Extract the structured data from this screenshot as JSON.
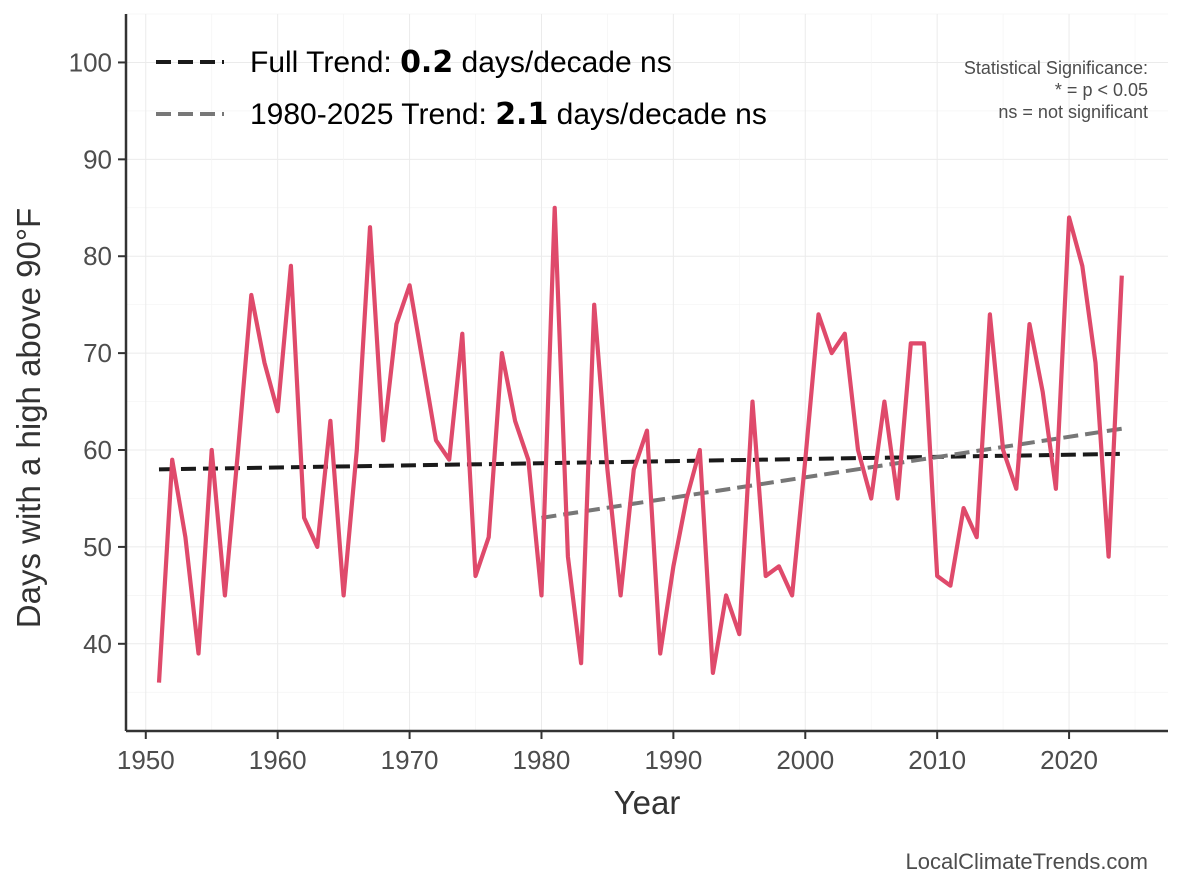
{
  "chart_data": {
    "type": "line",
    "title": "",
    "xlabel": "Year",
    "ylabel": "Days with a high above 90°F",
    "xlim": [
      1948.5,
      2027.5
    ],
    "ylim": [
      31,
      105
    ],
    "x_ticks": [
      1950,
      1960,
      1970,
      1980,
      1990,
      2000,
      2010,
      2020
    ],
    "y_ticks": [
      40,
      50,
      60,
      70,
      80,
      90,
      100
    ],
    "grid": true,
    "series": [
      {
        "color": "#df4a6b",
        "x": [
          1951,
          1952,
          1953,
          1954,
          1955,
          1956,
          1957,
          1958,
          1959,
          1960,
          1961,
          1962,
          1963,
          1964,
          1965,
          1966,
          1967,
          1968,
          1969,
          1970,
          1971,
          1972,
          1973,
          1974,
          1975,
          1976,
          1977,
          1978,
          1979,
          1980,
          1981,
          1982,
          1983,
          1984,
          1985,
          1986,
          1987,
          1988,
          1989,
          1990,
          1991,
          1992,
          1993,
          1994,
          1995,
          1996,
          1997,
          1998,
          1999,
          2000,
          2001,
          2002,
          2003,
          2004,
          2005,
          2006,
          2007,
          2008,
          2009,
          2010,
          2011,
          2012,
          2013,
          2014,
          2015,
          2016,
          2017,
          2018,
          2019,
          2020,
          2021,
          2022,
          2023,
          2024
        ],
        "values": [
          36,
          59,
          51,
          39,
          60,
          45,
          60,
          76,
          69,
          64,
          79,
          53,
          50,
          63,
          45,
          60,
          83,
          61,
          73,
          77,
          69,
          61,
          59,
          72,
          47,
          51,
          70,
          63,
          59,
          45,
          85,
          49,
          38,
          75,
          58,
          45,
          58,
          62,
          39,
          48,
          55,
          60,
          37,
          45,
          41,
          65,
          47,
          48,
          45,
          59,
          74,
          70,
          72,
          60,
          55,
          65,
          55,
          71,
          71,
          47,
          46,
          54,
          51,
          74,
          60,
          56,
          73,
          66,
          56,
          84,
          79,
          69,
          49,
          78
        ]
      }
    ],
    "trend_lines": [
      {
        "label": "Full Trend",
        "rate": "0.2",
        "suffix": " days/decade ns",
        "color": "#1a1a1a",
        "x": [
          1951,
          2024
        ],
        "y": [
          58.0,
          59.6
        ]
      },
      {
        "label": "1980-2025 Trend",
        "rate": "2.1",
        "suffix": " days/decade ns",
        "color": "#777777",
        "x": [
          1980,
          2024
        ],
        "y": [
          53.0,
          62.2
        ]
      }
    ],
    "legend_position": "top-left",
    "significance_note": [
      "Statistical Significance:",
      "* = p < 0.05",
      "ns = not significant"
    ],
    "caption": "LocalClimateTrends.com"
  }
}
